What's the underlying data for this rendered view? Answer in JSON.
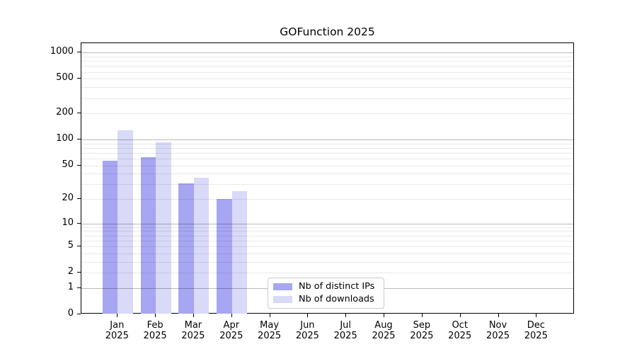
{
  "chart_data": {
    "type": "bar",
    "title": "GOFunction 2025",
    "categories": [
      "Jan 2025",
      "Feb 2025",
      "Mar 2025",
      "Apr 2025",
      "May 2025",
      "Jun 2025",
      "Jul 2025",
      "Aug 2025",
      "Sep 2025",
      "Oct 2025",
      "Nov 2025",
      "Dec 2025"
    ],
    "series": [
      {
        "name": "Nb of distinct IPs",
        "color": "#a6a6f2",
        "values": [
          57,
          62,
          31,
          20,
          0,
          0,
          0,
          0,
          0,
          0,
          0,
          0
        ]
      },
      {
        "name": "Nb of downloads",
        "color": "#d9d9f8",
        "values": [
          127,
          92,
          36,
          25,
          0,
          0,
          0,
          0,
          0,
          0,
          0,
          0
        ]
      }
    ],
    "y_axis": {
      "tick_values": [
        0,
        1,
        2,
        5,
        10,
        20,
        50,
        100,
        200,
        500,
        1000
      ],
      "scale": "log10(value+1)",
      "range": [
        0,
        1282
      ],
      "major_gridline_values": [
        1,
        10,
        100,
        1000
      ],
      "minor_gridlines": true
    },
    "xlabel": "",
    "ylabel": "",
    "grid": "horizontal",
    "legend_position": "lower center"
  }
}
